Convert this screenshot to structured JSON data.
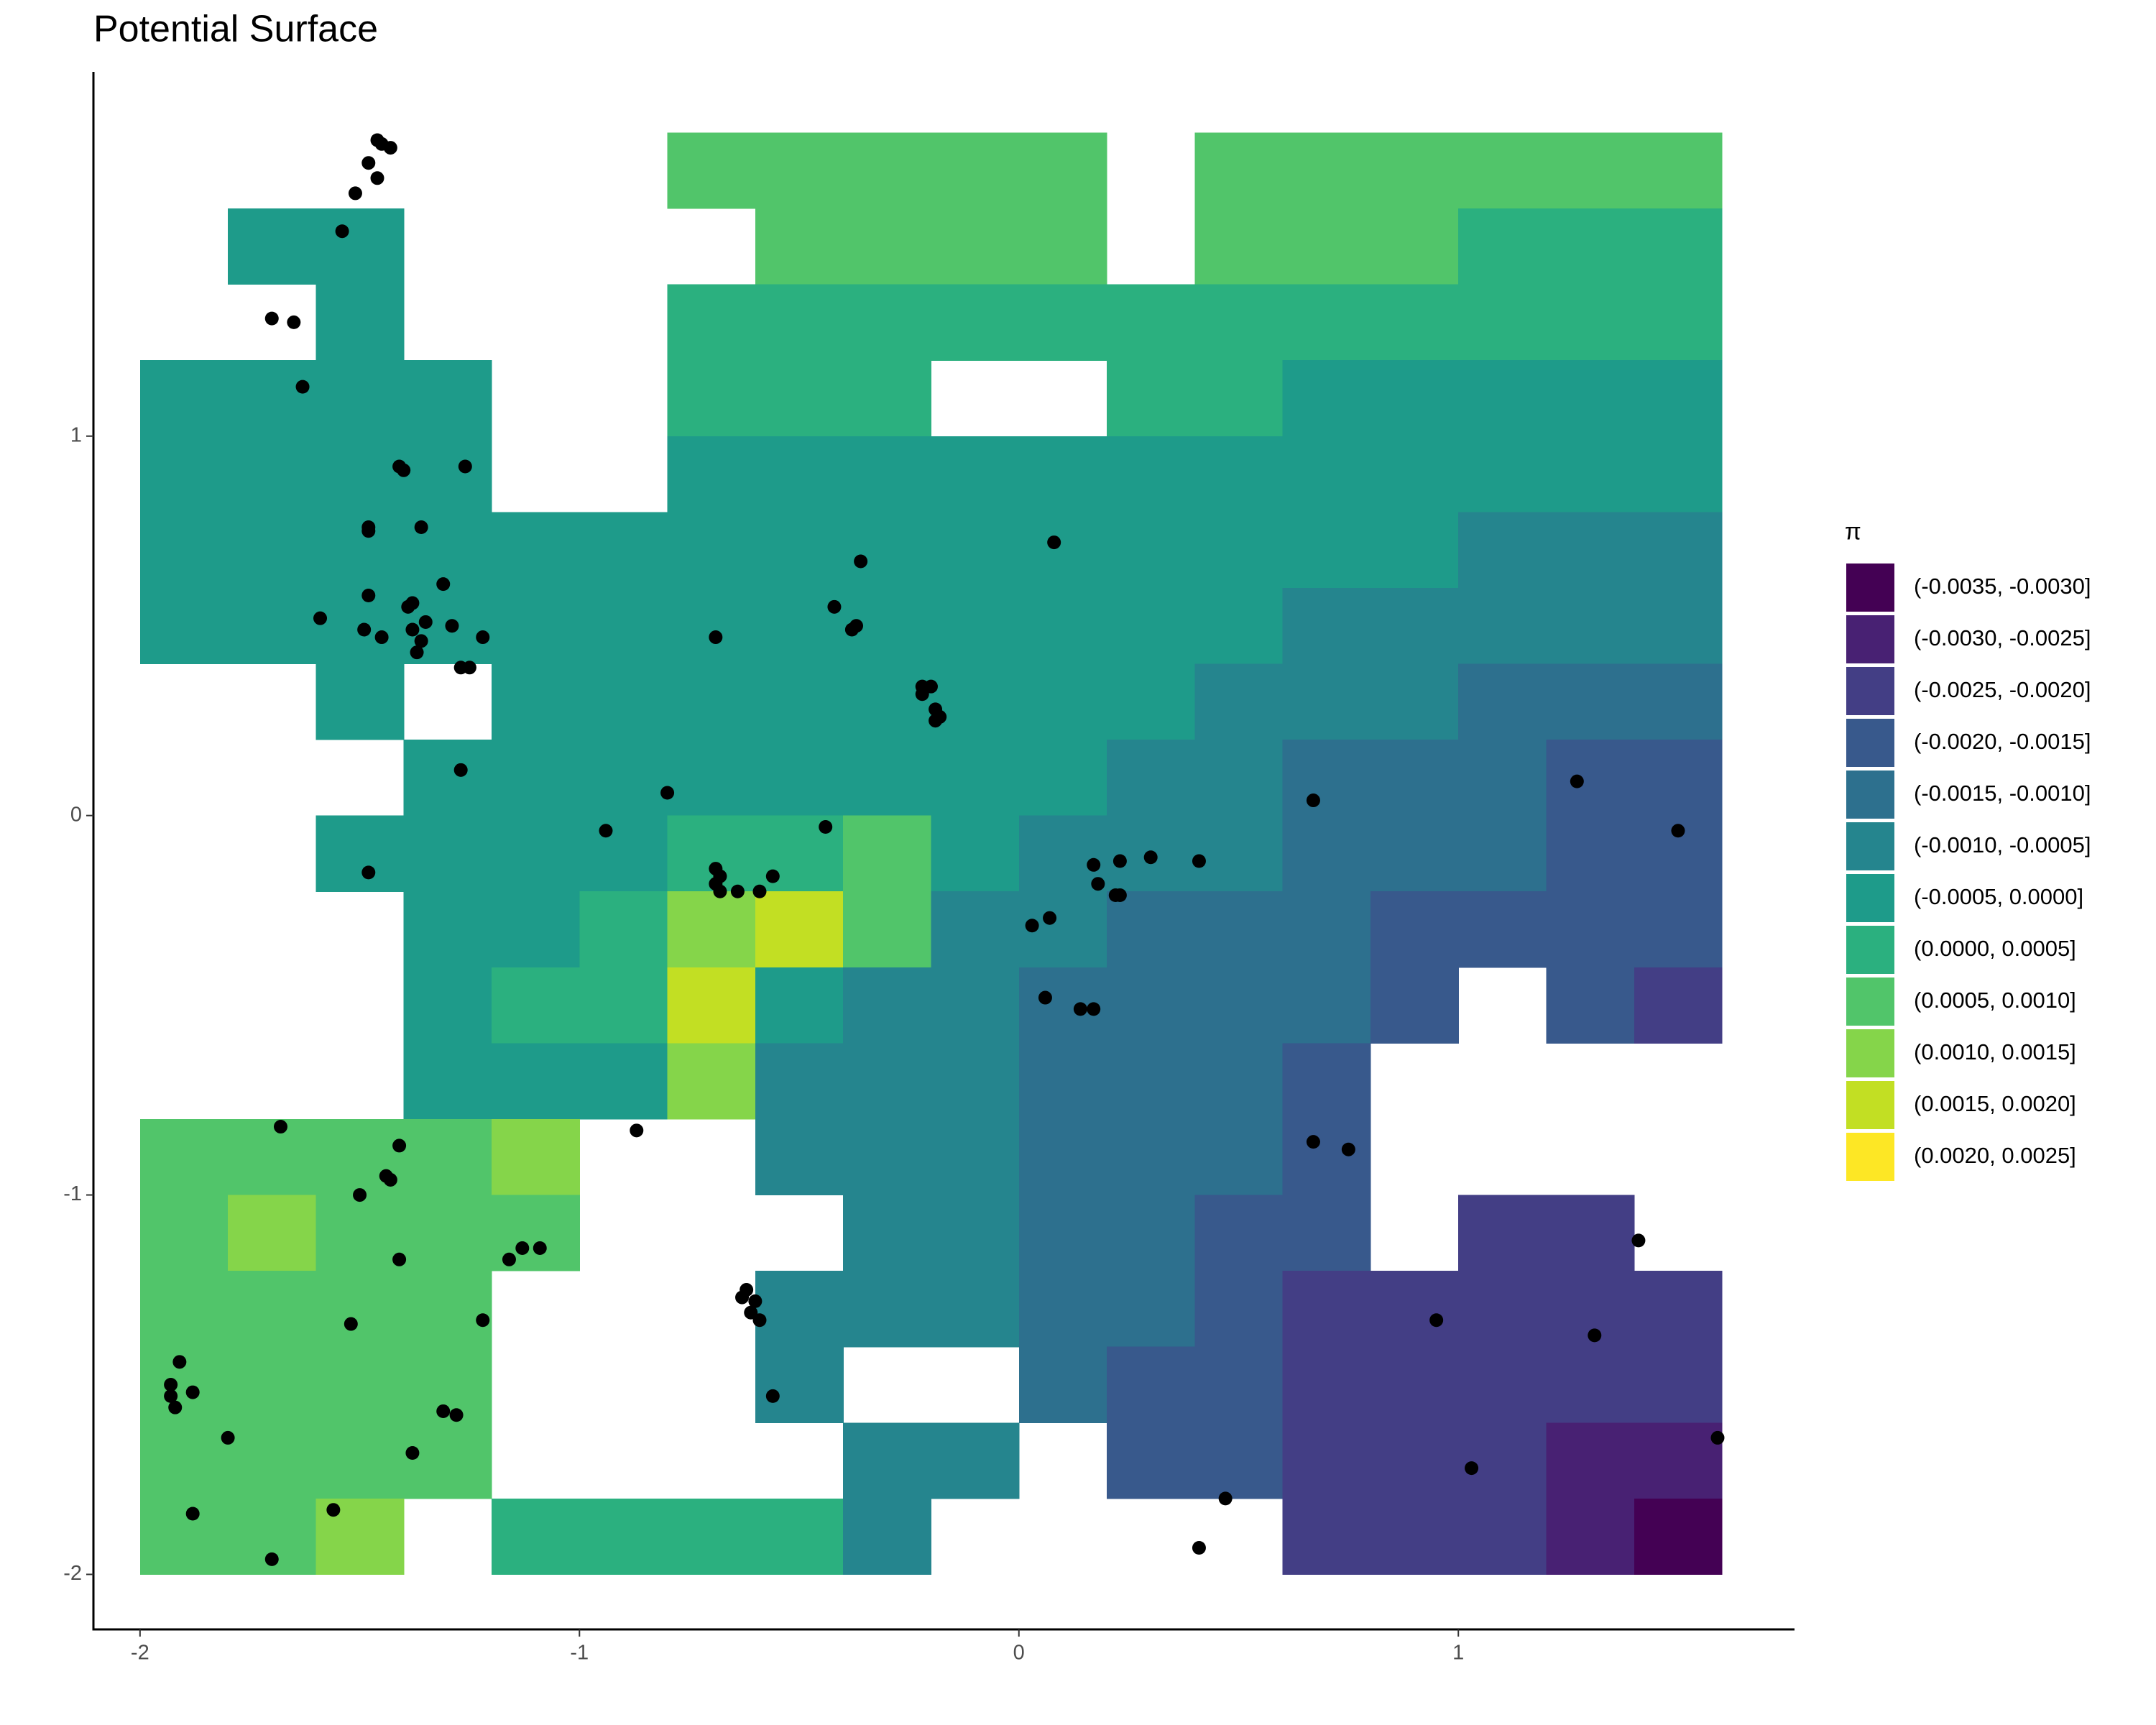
{
  "chart_data": {
    "type": "heatmap",
    "title": "Potential Surface",
    "xlim": [
      -2.106,
      1.765
    ],
    "ylim": [
      -2.145,
      1.96
    ],
    "xticks": [
      -2,
      -1,
      0,
      1
    ],
    "yticks": [
      -2,
      -1,
      0,
      1
    ],
    "surface": {
      "x": [
        -1.9,
        -1.7,
        -1.5,
        -1.3,
        -1.1,
        -0.9,
        -0.7,
        -0.5,
        -0.3,
        -0.1,
        0.1,
        0.3,
        0.5,
        0.7,
        0.9,
        1.1,
        1.3,
        1.5
      ],
      "y": [
        1.7,
        1.5,
        1.3,
        1.1,
        0.9,
        0.7,
        0.5,
        0.3,
        0.1,
        -0.1,
        -0.3,
        -0.5,
        -0.7,
        -0.9,
        -1.1,
        -1.3,
        -1.5,
        -1.7,
        -1.9
      ],
      "values": [
        [
          null,
          null,
          null,
          null,
          null,
          null,
          0.00075,
          0.00075,
          0.00075,
          0.00075,
          0.00075,
          null,
          0.00075,
          0.00075,
          0.00075,
          0.00075,
          0.00075,
          0.00075
        ],
        [
          null,
          -0.00025,
          -0.00025,
          null,
          null,
          null,
          null,
          0.00075,
          0.00075,
          0.00075,
          0.00075,
          null,
          0.00075,
          0.00075,
          0.00075,
          0.00025,
          0.00025,
          0.00025
        ],
        [
          null,
          null,
          -0.00025,
          null,
          null,
          null,
          0.00025,
          0.00025,
          0.00025,
          0.00025,
          0.00025,
          0.00025,
          0.00025,
          0.00025,
          0.00025,
          0.00025,
          0.00025,
          0.00025
        ],
        [
          -0.00025,
          -0.00025,
          -0.00025,
          -0.00025,
          null,
          null,
          0.00025,
          0.00025,
          0.00025,
          null,
          null,
          0.00025,
          0.00025,
          -0.00025,
          -0.00025,
          -0.00025,
          -0.00025,
          -0.00025
        ],
        [
          -0.00025,
          -0.00025,
          -0.00025,
          -0.00025,
          null,
          null,
          -0.00025,
          -0.00025,
          -0.00025,
          -0.00025,
          -0.00025,
          -0.00025,
          -0.00025,
          -0.00025,
          -0.00025,
          -0.00025,
          -0.00025,
          -0.00025
        ],
        [
          -0.00025,
          -0.00025,
          -0.00025,
          -0.00025,
          -0.00025,
          -0.00025,
          -0.00025,
          -0.00025,
          -0.00025,
          -0.00025,
          -0.00025,
          -0.00025,
          -0.00025,
          -0.00025,
          -0.00025,
          -0.00075,
          -0.00075,
          -0.00075
        ],
        [
          -0.00025,
          -0.00025,
          -0.00025,
          -0.00025,
          -0.00025,
          -0.00025,
          -0.00025,
          -0.00025,
          -0.00025,
          -0.00025,
          -0.00025,
          -0.00025,
          -0.00025,
          -0.00075,
          -0.00075,
          -0.00075,
          -0.00075,
          -0.00075
        ],
        [
          null,
          null,
          -0.00025,
          null,
          -0.00025,
          -0.00025,
          -0.00025,
          -0.00025,
          -0.00025,
          -0.00025,
          -0.00025,
          -0.00025,
          -0.00075,
          -0.00075,
          -0.00075,
          -0.00125,
          -0.00125,
          -0.00125
        ],
        [
          null,
          null,
          null,
          -0.00025,
          -0.00025,
          -0.00025,
          -0.00025,
          -0.00025,
          -0.00025,
          -0.00025,
          -0.00025,
          -0.00075,
          -0.00075,
          -0.00125,
          -0.00125,
          -0.00125,
          -0.00175,
          -0.00175
        ],
        [
          null,
          null,
          -0.00025,
          -0.00025,
          -0.00025,
          -0.00025,
          0.00025,
          0.00025,
          0.00075,
          -0.00025,
          -0.00075,
          -0.00075,
          -0.00075,
          -0.00125,
          -0.00125,
          -0.00125,
          -0.00175,
          -0.00175
        ],
        [
          null,
          null,
          null,
          -0.00025,
          -0.00025,
          0.00025,
          0.00125,
          0.00175,
          0.00075,
          -0.00075,
          -0.00075,
          -0.00125,
          -0.00125,
          -0.00125,
          -0.00175,
          -0.00175,
          -0.00175,
          -0.00175
        ],
        [
          null,
          null,
          null,
          -0.00025,
          0.00025,
          0.00025,
          0.00175,
          -0.00025,
          -0.00075,
          -0.00075,
          -0.00125,
          -0.00125,
          -0.00125,
          -0.00125,
          -0.00175,
          null,
          -0.00175,
          -0.00225
        ],
        [
          null,
          null,
          null,
          -0.00025,
          -0.00025,
          -0.00025,
          0.00125,
          -0.00075,
          -0.00075,
          -0.00075,
          -0.00125,
          -0.00125,
          -0.00125,
          -0.00175,
          null,
          null,
          null,
          null
        ],
        [
          0.00075,
          0.00075,
          0.00075,
          0.00075,
          0.00125,
          null,
          null,
          -0.00075,
          -0.00075,
          -0.00075,
          -0.00125,
          -0.00125,
          -0.00125,
          -0.00175,
          null,
          null,
          null,
          null
        ],
        [
          0.00075,
          0.00125,
          0.00075,
          0.00075,
          0.00075,
          null,
          null,
          null,
          -0.00075,
          -0.00075,
          -0.00125,
          -0.00125,
          -0.00175,
          -0.00175,
          null,
          -0.00225,
          -0.00225,
          null
        ],
        [
          0.00075,
          0.00075,
          0.00075,
          0.00075,
          null,
          null,
          null,
          -0.00075,
          -0.00075,
          -0.00075,
          -0.00125,
          -0.00125,
          -0.00175,
          -0.00225,
          -0.00225,
          -0.00225,
          -0.00225,
          -0.00225
        ],
        [
          0.00075,
          0.00075,
          0.00075,
          0.00075,
          null,
          null,
          null,
          -0.00075,
          null,
          null,
          -0.00125,
          -0.00175,
          -0.00175,
          -0.00225,
          -0.00225,
          -0.00225,
          -0.00225,
          -0.00225
        ],
        [
          0.00075,
          0.00075,
          0.00075,
          0.00075,
          null,
          null,
          null,
          null,
          -0.00075,
          -0.00075,
          null,
          -0.00175,
          -0.00175,
          -0.00225,
          -0.00225,
          -0.00225,
          -0.00275,
          -0.00275
        ],
        [
          0.00075,
          0.00075,
          0.00125,
          null,
          0.00025,
          0.00025,
          0.00025,
          0.00025,
          -0.00075,
          null,
          null,
          null,
          null,
          -0.00225,
          -0.00225,
          -0.00225,
          -0.00275,
          -0.00325
        ]
      ]
    },
    "points": {
      "color": "#000000",
      "x": [
        -1.46,
        -1.45,
        -1.43,
        -1.48,
        -1.46,
        -1.51,
        -1.54,
        -1.7,
        -1.65,
        -1.63,
        -1.41,
        -1.4,
        -1.26,
        -1.48,
        -1.48,
        -1.36,
        -1.31,
        -1.48,
        -1.38,
        -1.39,
        -1.35,
        -1.59,
        -1.49,
        -1.45,
        -1.38,
        -1.29,
        -1.36,
        -1.37,
        -1.27,
        -1.25,
        -1.22,
        -1.27,
        -1.48,
        -0.94,
        -0.8,
        -0.69,
        -0.36,
        -0.42,
        -0.37,
        -0.38,
        -0.22,
        -0.2,
        -0.22,
        -0.19,
        -0.18,
        -0.19,
        0.08,
        -0.44,
        -0.69,
        -0.68,
        -0.69,
        -0.68,
        -0.64,
        -0.59,
        -0.56,
        0.67,
        1.27,
        1.5,
        0.17,
        0.23,
        0.18,
        0.3,
        0.41,
        0.23,
        0.22,
        0.07,
        0.03,
        0.06,
        0.14,
        0.17,
        0.67,
        0.75,
        -0.87,
        -1.68,
        -1.41,
        -1.44,
        -1.43,
        -1.5,
        -1.41,
        -1.16,
        -1.13,
        -1.09,
        -1.22,
        -0.62,
        -0.63,
        -0.6,
        -0.61,
        -0.59,
        -0.56,
        -1.52,
        -1.93,
        -1.91,
        -1.93,
        -1.88,
        -1.92,
        -1.8,
        -1.31,
        -1.28,
        -1.38,
        -1.88,
        -1.56,
        -1.7,
        1.41,
        0.95,
        1.31,
        1.59,
        1.03,
        0.47,
        0.41
      ],
      "y": [
        1.78,
        1.77,
        1.76,
        1.72,
        1.68,
        1.64,
        1.54,
        1.31,
        1.3,
        1.13,
        0.92,
        0.91,
        0.92,
        0.76,
        0.75,
        0.76,
        0.61,
        0.58,
        0.56,
        0.55,
        0.51,
        0.52,
        0.49,
        0.47,
        0.49,
        0.5,
        0.46,
        0.43,
        0.39,
        0.39,
        0.47,
        0.12,
        -0.15,
        -0.04,
        0.06,
        0.47,
        0.67,
        0.55,
        0.5,
        0.49,
        0.34,
        0.34,
        0.32,
        0.28,
        0.26,
        0.25,
        0.72,
        -0.03,
        -0.14,
        -0.16,
        -0.18,
        -0.2,
        -0.2,
        -0.2,
        -0.16,
        0.04,
        0.09,
        -0.04,
        -0.13,
        -0.12,
        -0.18,
        -0.11,
        -0.12,
        -0.21,
        -0.21,
        -0.27,
        -0.29,
        -0.48,
        -0.51,
        -0.51,
        -0.86,
        -0.88,
        -0.83,
        -0.82,
        -0.87,
        -0.95,
        -0.96,
        -1.0,
        -1.17,
        -1.17,
        -1.14,
        -1.14,
        -1.33,
        -1.25,
        -1.27,
        -1.28,
        -1.31,
        -1.33,
        -1.53,
        -1.34,
        -1.5,
        -1.44,
        -1.53,
        -1.52,
        -1.56,
        -1.64,
        -1.57,
        -1.58,
        -1.68,
        -1.84,
        -1.83,
        -1.96,
        -1.12,
        -1.33,
        -1.37,
        -1.64,
        -1.72,
        -1.8,
        -1.93
      ]
    },
    "color_scale": {
      "title": "π",
      "bins": [
        -0.0035,
        -0.003,
        -0.0025,
        -0.002,
        -0.0015,
        -0.001,
        -0.0005,
        0,
        0.0005,
        0.001,
        0.0015,
        0.002,
        0.0025
      ],
      "labels": [
        "(-0.0035, -0.0030]",
        "(-0.0030, -0.0025]",
        "(-0.0025, -0.0020]",
        "(-0.0020, -0.0015]",
        "(-0.0015, -0.0010]",
        "(-0.0010, -0.0005]",
        "(-0.0005, 0.0000]",
        "(0.0000, 0.0005]",
        "(0.0005, 0.0010]",
        "(0.0010, 0.0015]",
        "(0.0015, 0.0020]",
        "(0.0020, 0.0025]"
      ],
      "colors": [
        "#440154",
        "#482173",
        "#433e85",
        "#38598c",
        "#2d708e",
        "#25858e",
        "#1e9b8a",
        "#2bb07f",
        "#51c56a",
        "#85d54a",
        "#c2df23",
        "#fde725"
      ]
    }
  }
}
